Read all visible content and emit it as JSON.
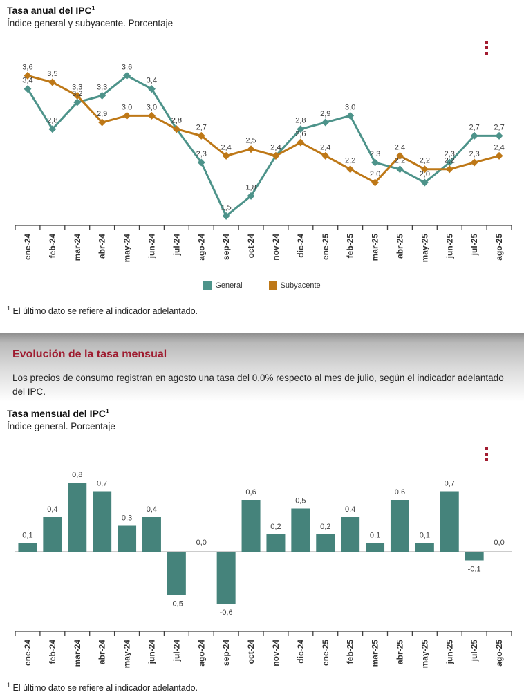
{
  "accent_red": "#A21C30",
  "axis_color": "#3f3f3f",
  "zero_line_color": "#9a9a9a",
  "annual": {
    "title": "Tasa anual del IPC",
    "title_sup": "1",
    "subtitle": "Índice general y subyacente. Porcentaje",
    "footnote_sup": "1",
    "footnote": "El último dato se refiere al indicador adelantado."
  },
  "section": {
    "title": "Evolución de la tasa mensual",
    "paragraph": "Los precios de consumo registran en agosto una tasa del 0,0% respecto al mes de julio, según el indicador adelantado del IPC."
  },
  "monthly": {
    "title": "Tasa mensual del IPC",
    "title_sup": "1",
    "subtitle": "Índice general. Porcentaje",
    "footnote_sup": "1",
    "footnote": "El último dato se refiere al indicador adelantado."
  },
  "chart_data": [
    {
      "type": "line",
      "title": "Tasa anual del IPC",
      "subtitle": "Índice general y subyacente. Porcentaje",
      "categories": [
        "ene-24",
        "feb-24",
        "mar-24",
        "abr-24",
        "may-24",
        "jun-24",
        "jul-24",
        "ago-24",
        "sep-24",
        "oct-24",
        "nov-24",
        "dic-24",
        "ene-25",
        "feb-25",
        "mar-25",
        "abr-25",
        "may-25",
        "jun-25",
        "jul-25",
        "ago-25"
      ],
      "series": [
        {
          "name": "General",
          "color": "#4D938A",
          "values": [
            3.4,
            2.8,
            3.2,
            3.3,
            3.6,
            3.4,
            2.8,
            2.3,
            1.5,
            1.8,
            2.4,
            2.8,
            2.9,
            3.0,
            2.3,
            2.2,
            2.0,
            2.3,
            2.7,
            2.7
          ]
        },
        {
          "name": "Subyacente",
          "color": "#BE7817",
          "values": [
            3.6,
            3.5,
            3.3,
            2.9,
            3.0,
            3.0,
            2.8,
            2.7,
            2.4,
            2.5,
            2.4,
            2.6,
            2.4,
            2.2,
            2.0,
            2.4,
            2.2,
            2.2,
            2.3,
            2.4
          ]
        }
      ],
      "ylim": [
        1.4,
        3.8
      ],
      "grid": false,
      "marker": "diamond",
      "legend_position": "bottom",
      "decimal": "comma"
    },
    {
      "type": "bar",
      "title": "Tasa mensual del IPC",
      "subtitle": "Índice general. Porcentaje",
      "categories": [
        "ene-24",
        "feb-24",
        "mar-24",
        "abr-24",
        "may-24",
        "jun-24",
        "jul-24",
        "ago-24",
        "sep-24",
        "oct-24",
        "nov-24",
        "dic-24",
        "ene-25",
        "feb-25",
        "mar-25",
        "abr-25",
        "may-25",
        "jun-25",
        "jul-25",
        "ago-25"
      ],
      "values": [
        0.1,
        0.4,
        0.8,
        0.7,
        0.3,
        0.4,
        -0.5,
        0.0,
        -0.6,
        0.6,
        0.2,
        0.5,
        0.2,
        0.4,
        0.1,
        0.6,
        0.1,
        0.7,
        -0.1,
        0.0
      ],
      "color": "#45837B",
      "ylim": [
        -0.8,
        0.95
      ],
      "grid": false,
      "decimal": "comma"
    }
  ]
}
